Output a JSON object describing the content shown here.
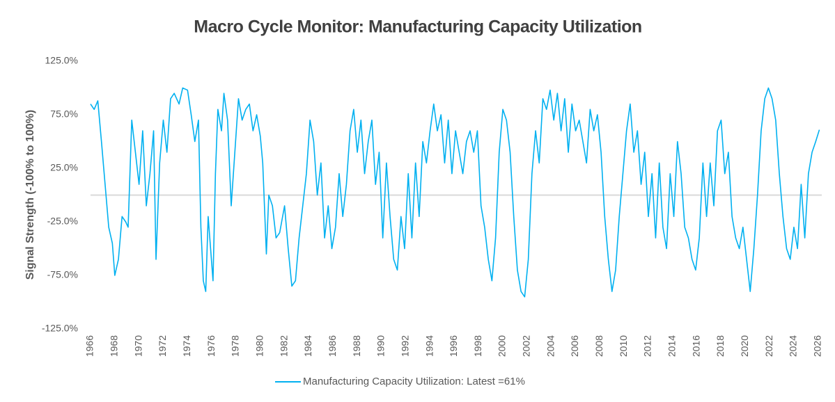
{
  "chart_data": {
    "type": "line",
    "title": "Macro Cycle Monitor: Manufacturing Capacity Utilization",
    "y_label": "Signal Strength (-100% to 100%)",
    "x": [
      1966.0,
      1966.3,
      1966.6,
      1966.9,
      1967.2,
      1967.5,
      1967.8,
      1968.0,
      1968.3,
      1968.6,
      1968.9,
      1969.1,
      1969.4,
      1969.7,
      1970.0,
      1970.3,
      1970.6,
      1970.9,
      1971.2,
      1971.4,
      1971.7,
      1972.0,
      1972.3,
      1972.6,
      1972.9,
      1973.3,
      1973.6,
      1974.0,
      1974.3,
      1974.6,
      1974.9,
      1975.1,
      1975.3,
      1975.5,
      1975.7,
      1975.9,
      1976.1,
      1976.3,
      1976.5,
      1976.8,
      1977.0,
      1977.3,
      1977.6,
      1977.9,
      1978.2,
      1978.5,
      1978.8,
      1979.1,
      1979.4,
      1979.7,
      1980.0,
      1980.2,
      1980.5,
      1980.7,
      1981.0,
      1981.3,
      1981.6,
      1982.0,
      1982.3,
      1982.6,
      1982.9,
      1983.2,
      1983.5,
      1983.8,
      1984.1,
      1984.4,
      1984.7,
      1985.0,
      1985.3,
      1985.6,
      1985.9,
      1986.2,
      1986.5,
      1986.8,
      1987.1,
      1987.4,
      1987.7,
      1988.0,
      1988.3,
      1988.6,
      1988.9,
      1989.2,
      1989.5,
      1989.8,
      1990.1,
      1990.4,
      1990.7,
      1991.0,
      1991.3,
      1991.6,
      1991.9,
      1992.2,
      1992.5,
      1992.8,
      1993.1,
      1993.4,
      1993.7,
      1994.0,
      1994.3,
      1994.6,
      1994.9,
      1995.2,
      1995.5,
      1995.8,
      1996.1,
      1996.4,
      1996.7,
      1997.0,
      1997.3,
      1997.6,
      1997.9,
      1998.2,
      1998.5,
      1998.8,
      1999.1,
      1999.4,
      1999.7,
      2000.0,
      2000.3,
      2000.6,
      2000.9,
      2001.2,
      2001.5,
      2001.8,
      2002.1,
      2002.4,
      2002.7,
      2003.0,
      2003.3,
      2003.6,
      2003.9,
      2004.2,
      2004.5,
      2004.8,
      2005.1,
      2005.4,
      2005.7,
      2006.0,
      2006.3,
      2006.6,
      2006.9,
      2007.2,
      2007.5,
      2007.8,
      2008.1,
      2008.4,
      2008.7,
      2009.0,
      2009.3,
      2009.6,
      2009.9,
      2010.2,
      2010.5,
      2010.8,
      2011.1,
      2011.4,
      2011.7,
      2012.0,
      2012.3,
      2012.6,
      2012.9,
      2013.2,
      2013.5,
      2013.8,
      2014.1,
      2014.4,
      2014.7,
      2015.0,
      2015.3,
      2015.6,
      2015.9,
      2016.2,
      2016.5,
      2016.8,
      2017.1,
      2017.4,
      2017.7,
      2018.0,
      2018.3,
      2018.6,
      2018.9,
      2019.2,
      2019.5,
      2019.8,
      2020.1,
      2020.4,
      2020.7,
      2021.0,
      2021.3,
      2021.6,
      2021.9,
      2022.2,
      2022.5,
      2022.8,
      2023.1,
      2023.4,
      2023.7,
      2024.0,
      2024.3,
      2024.6,
      2024.9,
      2025.2,
      2025.5,
      2025.8,
      2026.1
    ],
    "series": [
      {
        "name": "Manufacturing Capacity Utilization: Latest =61%",
        "color": "#00b0f0",
        "values": [
          85,
          80,
          88,
          50,
          10,
          -30,
          -45,
          -75,
          -60,
          -20,
          -25,
          -30,
          70,
          40,
          10,
          60,
          -10,
          20,
          60,
          -60,
          30,
          70,
          40,
          90,
          95,
          85,
          100,
          98,
          75,
          50,
          70,
          -30,
          -80,
          -90,
          -20,
          -50,
          -80,
          20,
          80,
          60,
          95,
          70,
          -10,
          40,
          90,
          70,
          80,
          85,
          60,
          75,
          55,
          30,
          -55,
          0,
          -10,
          -40,
          -35,
          -10,
          -50,
          -85,
          -80,
          -40,
          -10,
          20,
          70,
          50,
          0,
          30,
          -40,
          -10,
          -50,
          -30,
          20,
          -20,
          10,
          60,
          80,
          40,
          70,
          20,
          50,
          70,
          10,
          40,
          -40,
          30,
          -20,
          -60,
          -70,
          -20,
          -50,
          20,
          -40,
          30,
          -20,
          50,
          30,
          60,
          85,
          60,
          75,
          30,
          70,
          20,
          60,
          40,
          20,
          50,
          60,
          40,
          60,
          -10,
          -30,
          -60,
          -80,
          -40,
          40,
          80,
          70,
          40,
          -20,
          -70,
          -90,
          -95,
          -60,
          20,
          60,
          30,
          90,
          80,
          98,
          70,
          95,
          60,
          90,
          40,
          85,
          60,
          70,
          50,
          30,
          80,
          60,
          75,
          40,
          -20,
          -60,
          -90,
          -70,
          -20,
          20,
          60,
          85,
          40,
          60,
          10,
          40,
          -20,
          20,
          -40,
          30,
          -30,
          -50,
          20,
          -20,
          50,
          20,
          -30,
          -40,
          -60,
          -70,
          -40,
          30,
          -20,
          30,
          -10,
          60,
          70,
          20,
          40,
          -20,
          -40,
          -50,
          -30,
          -60,
          -90,
          -50,
          0,
          60,
          90,
          100,
          90,
          70,
          20,
          -20,
          -50,
          -60,
          -30,
          -50,
          10,
          -40,
          20,
          40,
          50,
          61
        ]
      }
    ],
    "xlim": [
      1966,
      2026.3
    ],
    "xticks": [
      1966,
      1968,
      1970,
      1972,
      1974,
      1976,
      1978,
      1980,
      1982,
      1984,
      1986,
      1988,
      1990,
      1992,
      1994,
      1996,
      1998,
      2000,
      2002,
      2004,
      2006,
      2008,
      2010,
      2012,
      2014,
      2016,
      2018,
      2020,
      2022,
      2024,
      2026
    ],
    "ylim": [
      -125,
      125
    ],
    "yticks": [
      {
        "value": -125,
        "label": "-125.0%"
      },
      {
        "value": -75,
        "label": "-75.0%"
      },
      {
        "value": -25,
        "label": "-25.0%"
      },
      {
        "value": 25,
        "label": "25.0%"
      },
      {
        "value": 75,
        "label": "75.0%"
      },
      {
        "value": 125,
        "label": "125.0%"
      }
    ],
    "legend": "bottom"
  }
}
